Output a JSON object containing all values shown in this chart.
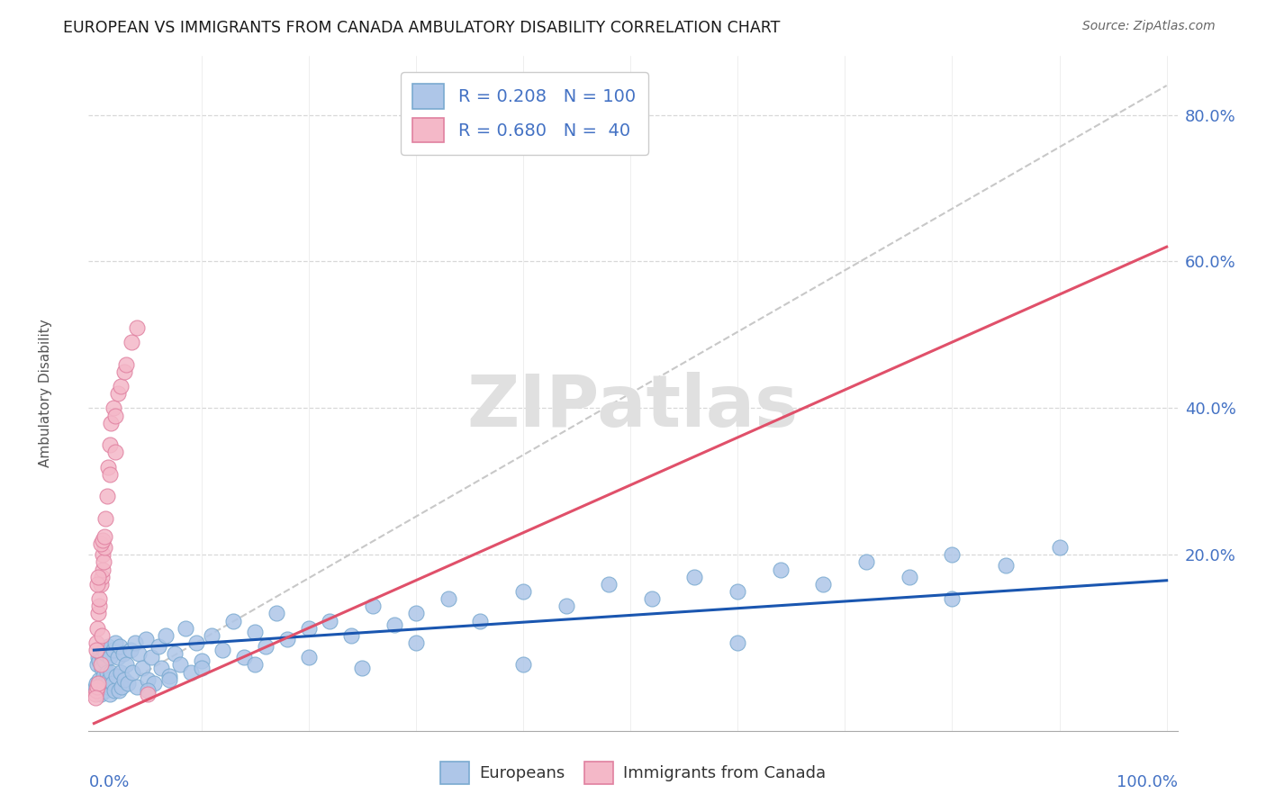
{
  "title": "EUROPEAN VS IMMIGRANTS FROM CANADA AMBULATORY DISABILITY CORRELATION CHART",
  "source": "Source: ZipAtlas.com",
  "ylabel": "Ambulatory Disability",
  "eu_R": 0.208,
  "eu_N": 100,
  "ca_R": 0.68,
  "ca_N": 40,
  "eu_color": "#aec6e8",
  "eu_edge": "#7aaad0",
  "eu_line": "#1a56b0",
  "ca_color": "#f4b8c8",
  "ca_edge": "#e080a0",
  "ca_line": "#e0506a",
  "dash_color": "#c8c8c8",
  "grid_color": "#d8d8d8",
  "title_color": "#1a1a1a",
  "source_color": "#666666",
  "label_color": "#4472c4",
  "watermark": "ZIPatlas",
  "watermark_color": "#e0e0e0",
  "background_color": "#ffffff",
  "eu_x": [
    0.001,
    0.002,
    0.003,
    0.003,
    0.004,
    0.004,
    0.005,
    0.005,
    0.006,
    0.006,
    0.007,
    0.007,
    0.008,
    0.008,
    0.009,
    0.009,
    0.01,
    0.01,
    0.011,
    0.011,
    0.012,
    0.013,
    0.013,
    0.014,
    0.015,
    0.015,
    0.016,
    0.017,
    0.018,
    0.019,
    0.02,
    0.021,
    0.022,
    0.023,
    0.024,
    0.025,
    0.026,
    0.027,
    0.028,
    0.03,
    0.032,
    0.034,
    0.036,
    0.038,
    0.04,
    0.042,
    0.045,
    0.048,
    0.05,
    0.053,
    0.056,
    0.06,
    0.063,
    0.067,
    0.07,
    0.075,
    0.08,
    0.085,
    0.09,
    0.095,
    0.1,
    0.11,
    0.12,
    0.13,
    0.14,
    0.15,
    0.16,
    0.17,
    0.18,
    0.2,
    0.22,
    0.24,
    0.26,
    0.28,
    0.3,
    0.33,
    0.36,
    0.4,
    0.44,
    0.48,
    0.52,
    0.56,
    0.6,
    0.64,
    0.68,
    0.72,
    0.76,
    0.8,
    0.85,
    0.9,
    0.05,
    0.07,
    0.1,
    0.15,
    0.2,
    0.25,
    0.3,
    0.4,
    0.6,
    0.8
  ],
  "eu_y": [
    0.02,
    0.025,
    0.015,
    0.05,
    0.02,
    0.06,
    0.03,
    0.055,
    0.01,
    0.065,
    0.025,
    0.045,
    0.015,
    0.06,
    0.035,
    0.07,
    0.025,
    0.055,
    0.015,
    0.065,
    0.04,
    0.02,
    0.075,
    0.03,
    0.01,
    0.06,
    0.04,
    0.025,
    0.07,
    0.015,
    0.08,
    0.035,
    0.06,
    0.015,
    0.075,
    0.04,
    0.02,
    0.065,
    0.03,
    0.05,
    0.025,
    0.07,
    0.04,
    0.08,
    0.02,
    0.065,
    0.045,
    0.085,
    0.03,
    0.06,
    0.025,
    0.075,
    0.045,
    0.09,
    0.035,
    0.065,
    0.05,
    0.1,
    0.04,
    0.08,
    0.055,
    0.09,
    0.07,
    0.11,
    0.06,
    0.095,
    0.075,
    0.12,
    0.085,
    0.1,
    0.11,
    0.09,
    0.13,
    0.105,
    0.12,
    0.14,
    0.11,
    0.15,
    0.13,
    0.16,
    0.14,
    0.17,
    0.15,
    0.18,
    0.16,
    0.19,
    0.17,
    0.2,
    0.185,
    0.21,
    0.015,
    0.03,
    0.045,
    0.05,
    0.06,
    0.045,
    0.08,
    0.05,
    0.08,
    0.14
  ],
  "ca_x": [
    0.001,
    0.002,
    0.002,
    0.003,
    0.003,
    0.004,
    0.004,
    0.005,
    0.005,
    0.006,
    0.006,
    0.007,
    0.007,
    0.008,
    0.008,
    0.009,
    0.01,
    0.011,
    0.012,
    0.013,
    0.015,
    0.016,
    0.018,
    0.02,
    0.022,
    0.025,
    0.028,
    0.03,
    0.035,
    0.04,
    0.002,
    0.003,
    0.004,
    0.006,
    0.008,
    0.01,
    0.015,
    0.02,
    0.001,
    0.05
  ],
  "ca_y": [
    0.01,
    0.015,
    0.08,
    0.02,
    0.1,
    0.025,
    0.12,
    0.13,
    0.14,
    0.05,
    0.16,
    0.09,
    0.17,
    0.18,
    0.2,
    0.19,
    0.21,
    0.25,
    0.28,
    0.32,
    0.35,
    0.38,
    0.4,
    0.39,
    0.42,
    0.43,
    0.45,
    0.46,
    0.49,
    0.51,
    0.07,
    0.16,
    0.17,
    0.215,
    0.22,
    0.225,
    0.31,
    0.34,
    0.005,
    0.01
  ],
  "xlim": [
    0.0,
    1.0
  ],
  "ylim": [
    -0.04,
    0.88
  ],
  "yticks": [
    0.0,
    0.2,
    0.4,
    0.6,
    0.8
  ],
  "xticks": [
    0.0,
    1.0
  ]
}
